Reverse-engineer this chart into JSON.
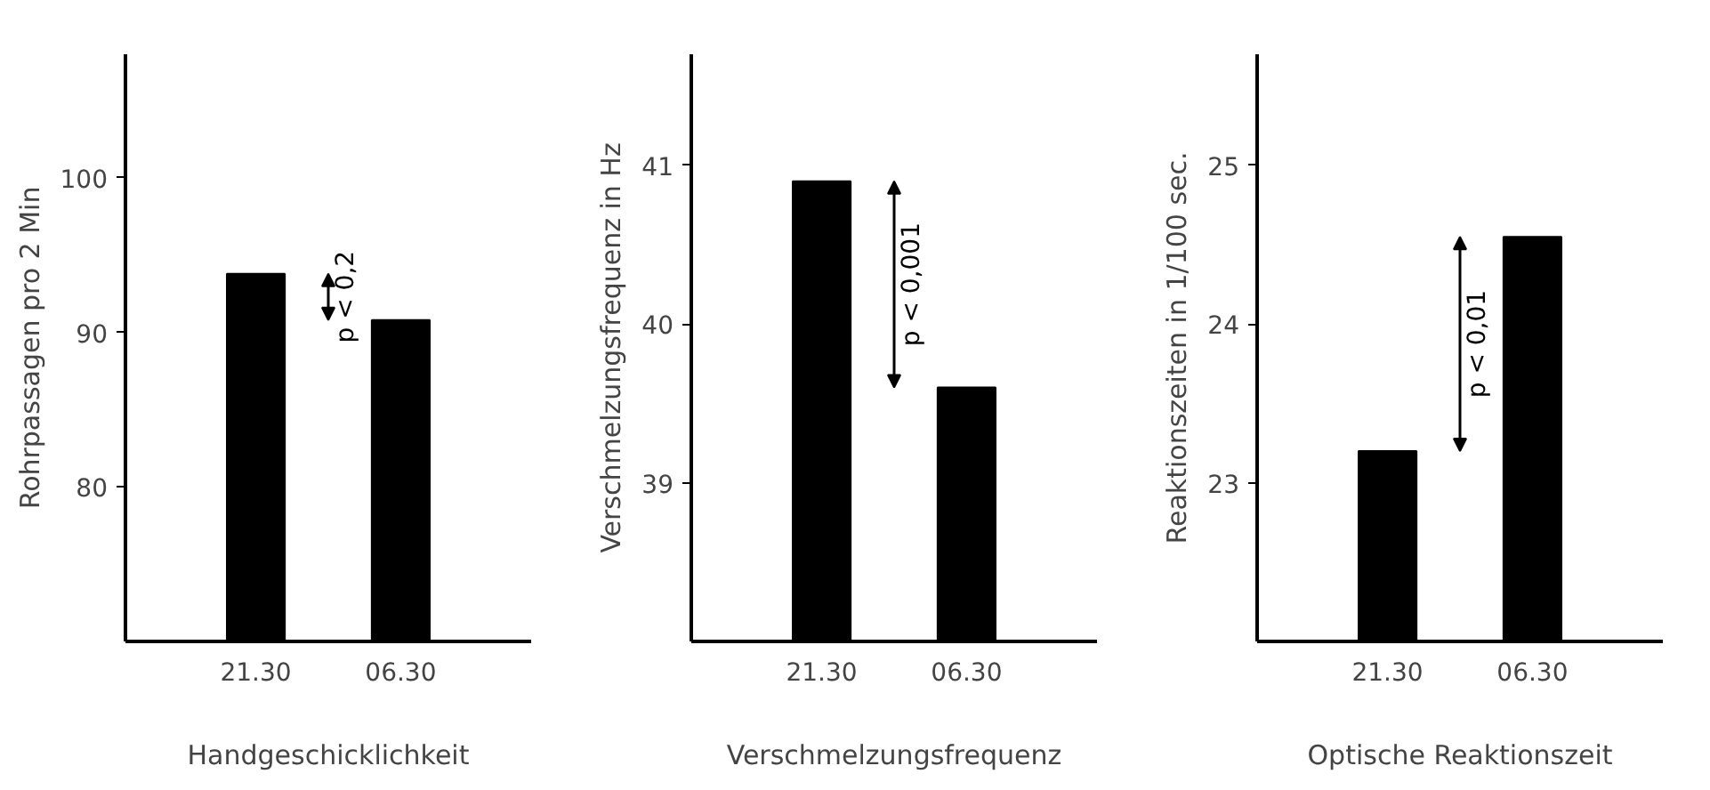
{
  "chart_data": [
    {
      "type": "bar",
      "categories": [
        "21.30",
        "06.30"
      ],
      "values": [
        93.8,
        90.8
      ],
      "color": "#000000",
      "ylabel": "Rohrpassagen pro 2 Min",
      "xlabel": "Handgeschicklichkeit",
      "ylim": [
        70,
        108
      ],
      "yticks": [
        80,
        90,
        100
      ],
      "grid": false,
      "annotations": [
        "p < 0,2"
      ]
    },
    {
      "type": "bar",
      "categories": [
        "21.30",
        "06.30"
      ],
      "values": [
        40.9,
        39.6
      ],
      "color": "#000000",
      "ylabel": "Verschmelzungsfrequenz in Hz",
      "xlabel": "Verschmelzungsfrequenz",
      "ylim": [
        38,
        41.7
      ],
      "yticks": [
        39,
        40,
        41
      ],
      "grid": false,
      "annotations": [
        "p < 0,001"
      ]
    },
    {
      "type": "bar",
      "categories": [
        "21.30",
        "06.30"
      ],
      "values": [
        23.2,
        24.55
      ],
      "color": "#000000",
      "ylabel": "Reaktionszeiten in 1/100 sec.",
      "xlabel": "Optische Reaktionszeit",
      "ylim": [
        22,
        25.7
      ],
      "yticks": [
        23,
        24,
        25
      ],
      "grid": false,
      "annotations": [
        "p < 0,01"
      ]
    }
  ]
}
